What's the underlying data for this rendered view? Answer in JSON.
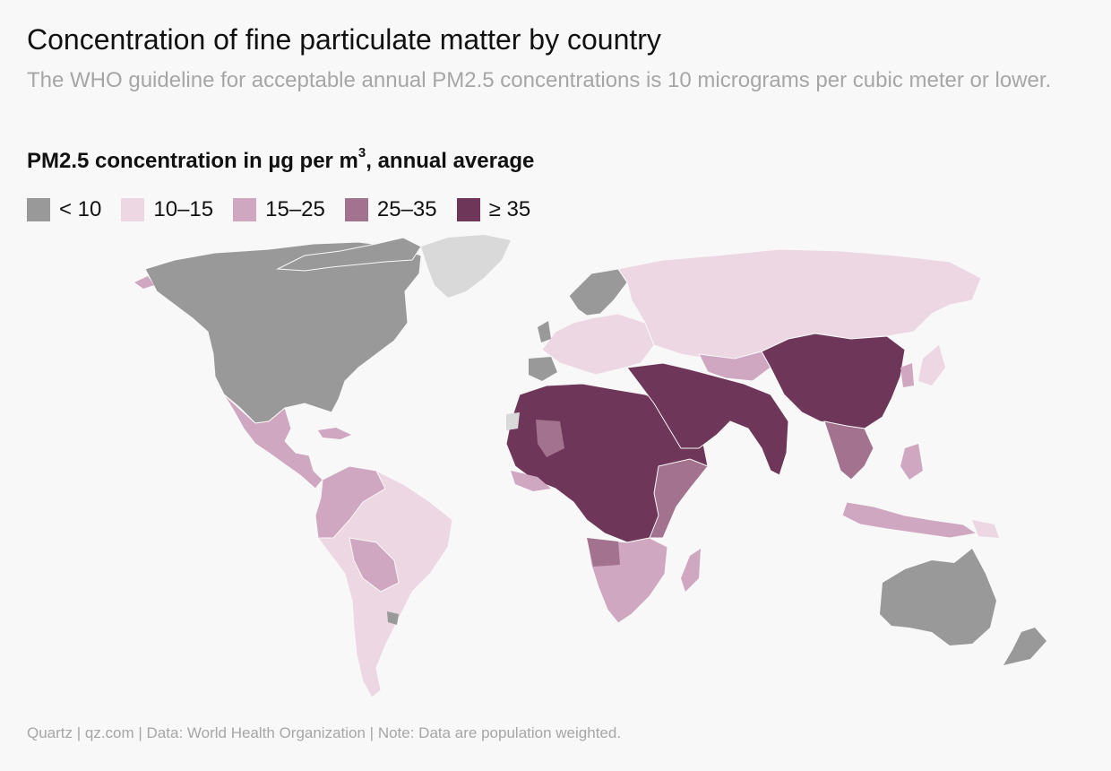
{
  "header": {
    "title": "Concentration of fine particulate matter by country",
    "subtitle": "The WHO guideline for acceptable annual PM2.5 concentrations is 10 micrograms per cubic meter or lower."
  },
  "legend": {
    "title_main": "PM2.5 concentration in µg per m",
    "title_sup": "3",
    "title_tail": ", annual average",
    "items": [
      {
        "label": "< 10",
        "color": "#999999"
      },
      {
        "label": "10–15",
        "color": "#ecd7e3"
      },
      {
        "label": "15–25",
        "color": "#cfa7c0"
      },
      {
        "label": "25–35",
        "color": "#a3728f"
      },
      {
        "label": "≥ 35",
        "color": "#6e3658"
      }
    ]
  },
  "map": {
    "no_data_color": "#d9d9d9",
    "background_color": "#f8f8f8"
  },
  "footer": {
    "source": "Quartz | qz.com | Data: World Health Organization | Note: Data are population weighted."
  }
}
